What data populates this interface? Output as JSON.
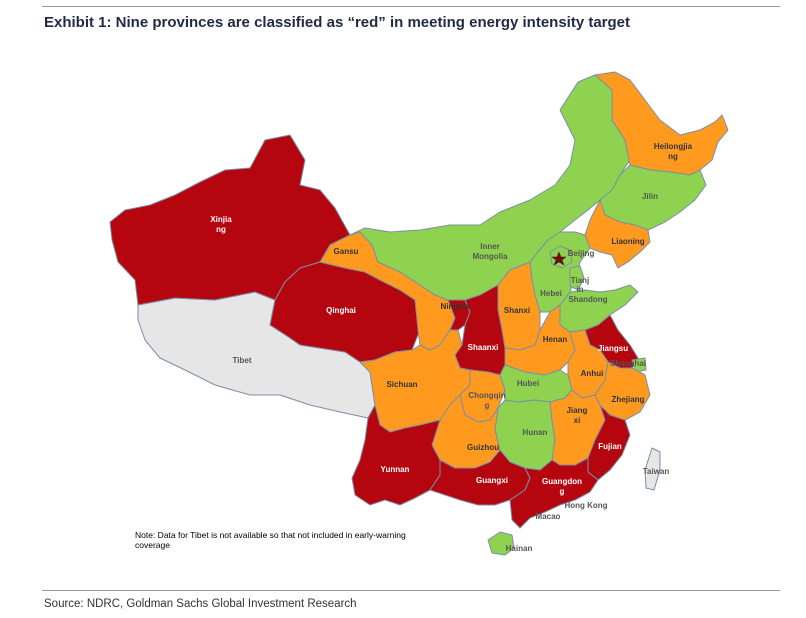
{
  "header": {
    "title": "Exhibit 1: Nine provinces are classified as “red” in meeting energy intensity target"
  },
  "footer": {
    "source": "Source: NDRC, Goldman Sachs Global Investment Research"
  },
  "legend_colors": {
    "red": "#b5060f",
    "orange": "#ff9a1f",
    "green": "#8ed24f",
    "na": "#e6e6e6",
    "border": "#7a8fa8"
  },
  "map": {
    "note_line1": "Note: Data for Tibet is not available so that not included in early-warning",
    "note_line2": "coverage",
    "capital_marker": "star-icon",
    "provinces": [
      {
        "name_line1": "Xinjia",
        "name_line2": "ng",
        "status": "red"
      },
      {
        "name_line1": "Tibet",
        "status": "not available"
      },
      {
        "name_line1": "Qinghai",
        "status": "red"
      },
      {
        "name_line1": "Gansu",
        "status": "orange"
      },
      {
        "name_line1": "Inner",
        "name_line2": "Mongolia",
        "status": "green"
      },
      {
        "name_line1": "Heilongjia",
        "name_line2": "ng",
        "status": "orange"
      },
      {
        "name_line1": "Jilin",
        "status": "green"
      },
      {
        "name_line1": "Liaoning",
        "status": "orange"
      },
      {
        "name_line1": "Beijing",
        "status": "green"
      },
      {
        "name_line1": "Tianj",
        "name_line2": "in",
        "status": "green"
      },
      {
        "name_line1": "Hebei",
        "status": "green"
      },
      {
        "name_line1": "Shandong",
        "status": "green"
      },
      {
        "name_line1": "Ningxia",
        "status": "red"
      },
      {
        "name_line1": "Shanxi",
        "status": "orange"
      },
      {
        "name_line1": "Shaanxi",
        "status": "red"
      },
      {
        "name_line1": "Henan",
        "status": "orange"
      },
      {
        "name_line1": "Jiangsu",
        "status": "red"
      },
      {
        "name_line1": "Shanghai",
        "status": "green"
      },
      {
        "name_line1": "Anhui",
        "status": "orange"
      },
      {
        "name_line1": "Sichuan",
        "status": "orange"
      },
      {
        "name_line1": "Chongqin",
        "name_line2": "g",
        "status": "orange"
      },
      {
        "name_line1": "Hubei",
        "status": "green"
      },
      {
        "name_line1": "Zhejiang",
        "status": "orange"
      },
      {
        "name_line1": "Jiang",
        "name_line2": "xi",
        "status": "orange"
      },
      {
        "name_line1": "Hunan",
        "status": "green"
      },
      {
        "name_line1": "Guizhou",
        "status": "orange"
      },
      {
        "name_line1": "Fujian",
        "status": "red"
      },
      {
        "name_line1": "Yunnan",
        "status": "red"
      },
      {
        "name_line1": "Guangxi",
        "status": "red"
      },
      {
        "name_line1": "Guangdon",
        "name_line2": "g",
        "status": "red"
      },
      {
        "name_line1": "Hong Kong",
        "status": "not rated"
      },
      {
        "name_line1": "Macao",
        "status": "not rated"
      },
      {
        "name_line1": "Taiwan",
        "status": "not rated"
      },
      {
        "name_line1": "Hainan",
        "status": "green"
      }
    ]
  }
}
